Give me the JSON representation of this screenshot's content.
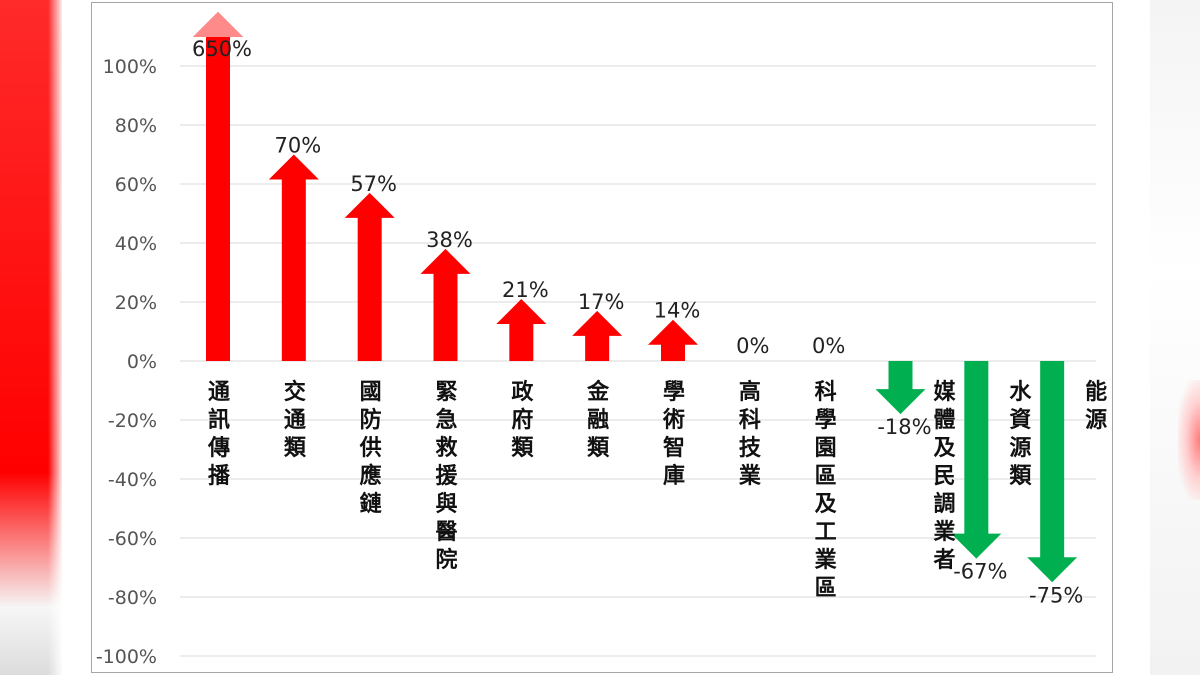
{
  "chart_data": {
    "type": "bar",
    "categories": [
      "通訊傳播",
      "交通類",
      "國防供應鏈",
      "緊急救援與醫院",
      "政府類",
      "金融類",
      "學術智庫",
      "高科技業",
      "科學園區及工業區",
      "媒體及民調業者",
      "水資源類",
      "能源"
    ],
    "values": [
      650,
      70,
      57,
      38,
      21,
      17,
      14,
      0,
      0,
      -18,
      -67,
      -75
    ],
    "data_labels": [
      "650%",
      "70%",
      "57%",
      "38%",
      "21%",
      "17%",
      "14%",
      "0%",
      "0%",
      "-18%",
      "-67%",
      "-75%"
    ],
    "y_ticks": [
      "100%",
      "80%",
      "60%",
      "40%",
      "20%",
      "0%",
      "-20%",
      "-40%",
      "-60%",
      "-80%",
      "-100%"
    ],
    "ylim": [
      -100,
      100
    ],
    "grid": true,
    "colors": {
      "increase": "#ff0000",
      "decrease": "#00b050",
      "overflow_tip": "#ff8a8a"
    }
  }
}
